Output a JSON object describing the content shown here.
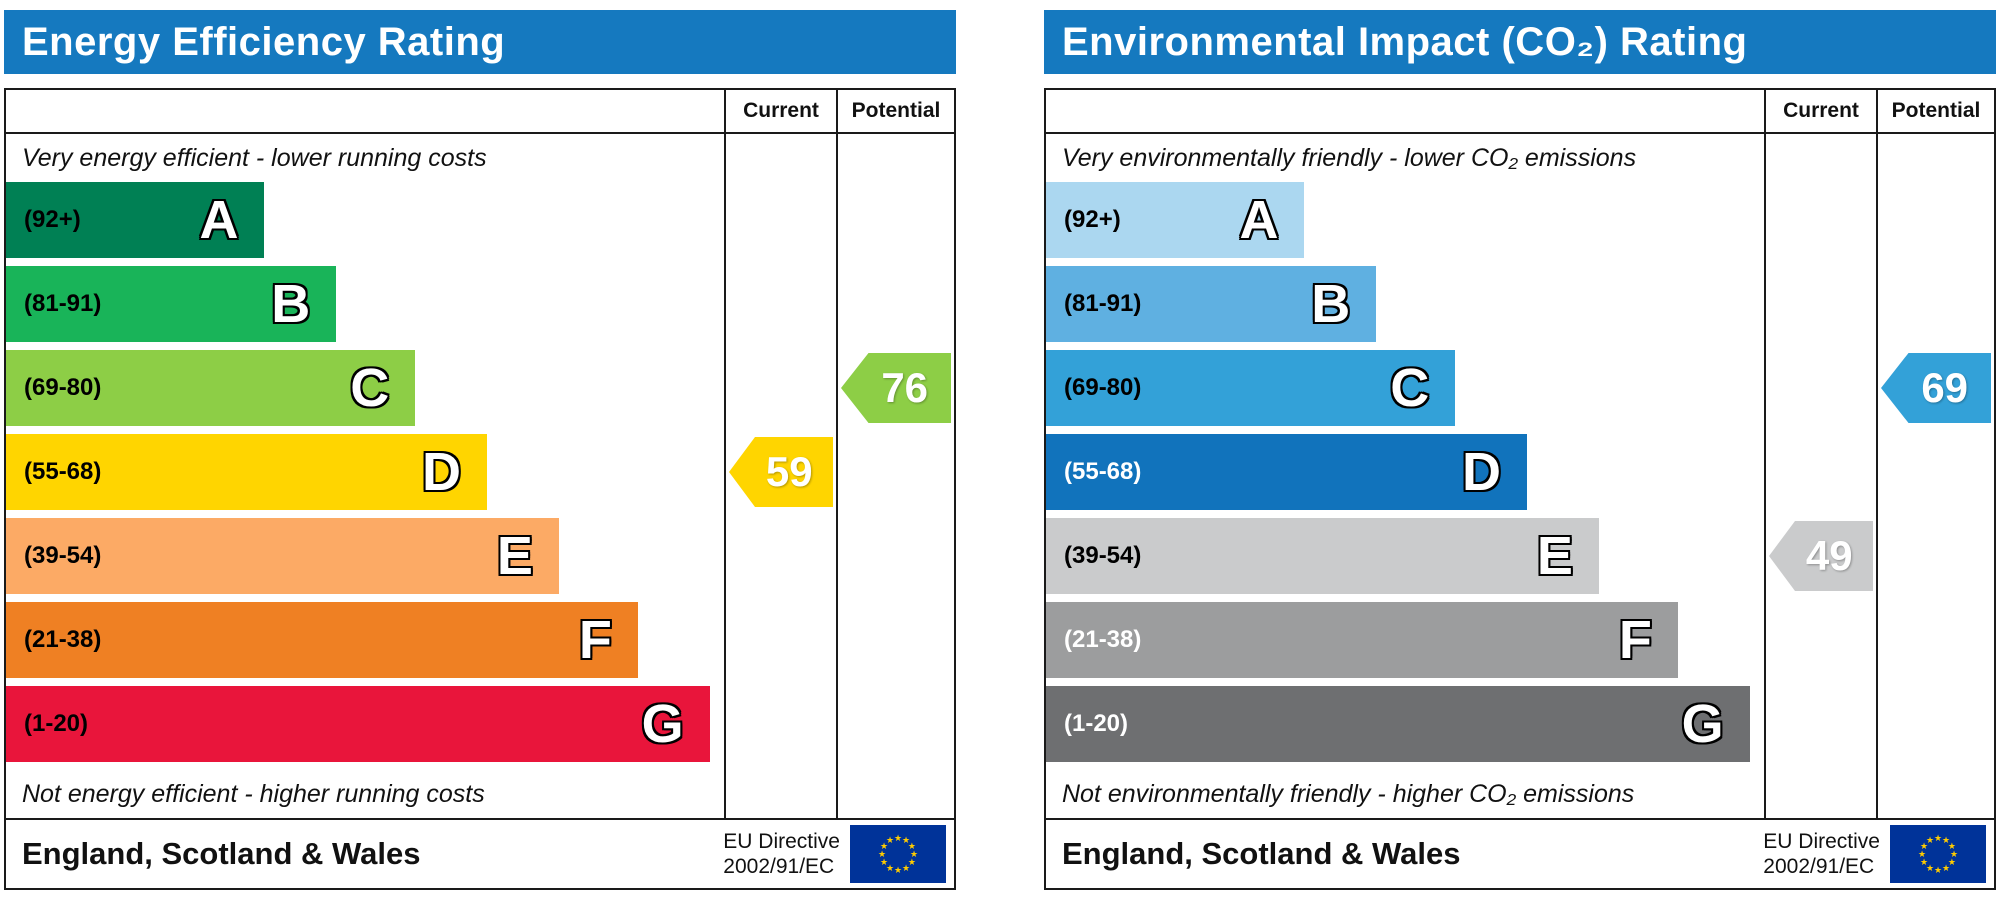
{
  "chart_data": [
    {
      "type": "bar",
      "title": "Energy Efficiency Rating",
      "columns": [
        "Current",
        "Potential"
      ],
      "top_note": "Very energy efficient - lower running costs",
      "bottom_note": "Not energy efficient - higher running costs",
      "categories": [
        "A (92+)",
        "B (81-91)",
        "C (69-80)",
        "D (55-68)",
        "E (39-54)",
        "F (21-38)",
        "G (1-20)"
      ],
      "band_colors": [
        "#008054",
        "#19b459",
        "#8dce46",
        "#ffd500",
        "#fcaa65",
        "#ef8023",
        "#e9153b"
      ],
      "current": {
        "value": 59,
        "band": "D"
      },
      "potential": {
        "value": 76,
        "band": "C"
      },
      "region": "England, Scotland & Wales",
      "directive": "EU Directive 2002/91/EC"
    },
    {
      "type": "bar",
      "title": "Environmental Impact (CO₂) Rating",
      "columns": [
        "Current",
        "Potential"
      ],
      "top_note": "Very environmentally friendly - lower CO₂ emissions",
      "bottom_note": "Not environmentally friendly - higher CO₂ emissions",
      "categories": [
        "A (92+)",
        "B (81-91)",
        "C (69-80)",
        "D (55-68)",
        "E (39-54)",
        "F (21-38)",
        "G (1-20)"
      ],
      "band_colors": [
        "#abd7f0",
        "#5fb0e1",
        "#33a1d8",
        "#1173bc",
        "#cacbcc",
        "#9c9d9e",
        "#6e6f71"
      ],
      "current": {
        "value": 49,
        "band": "E"
      },
      "potential": {
        "value": 69,
        "band": "C"
      },
      "region": "England, Scotland & Wales",
      "directive": "EU Directive 2002/91/EC"
    }
  ],
  "panels": [
    {
      "title": "Energy Efficiency Rating",
      "header_color": "#1579bf",
      "col_current": "Current",
      "col_potential": "Potential",
      "caption_top": "Very energy efficient - lower running costs",
      "caption_bottom": "Not energy efficient - higher running costs",
      "bands": [
        {
          "range": "(92+)",
          "letter": "A",
          "color": "#008054",
          "width": "36%",
          "text_color": "#000000"
        },
        {
          "range": "(81-91)",
          "letter": "B",
          "color": "#19b459",
          "width": "46%",
          "text_color": "#000000"
        },
        {
          "range": "(69-80)",
          "letter": "C",
          "color": "#8dce46",
          "width": "57%",
          "text_color": "#000000"
        },
        {
          "range": "(55-68)",
          "letter": "D",
          "color": "#ffd500",
          "width": "67%",
          "text_color": "#000000"
        },
        {
          "range": "(39-54)",
          "letter": "E",
          "color": "#fcaa65",
          "width": "77%",
          "text_color": "#000000"
        },
        {
          "range": "(21-38)",
          "letter": "F",
          "color": "#ef8023",
          "width": "88%",
          "text_color": "#000000"
        },
        {
          "range": "(1-20)",
          "letter": "G",
          "color": "#e9153b",
          "width": "98%",
          "text_color": "#000000"
        }
      ],
      "arrows": {
        "current": {
          "value": "59",
          "color": "#ffd500",
          "row": 3
        },
        "potential": {
          "value": "76",
          "color": "#8dce46",
          "row": 2
        }
      },
      "footer_region": "England, Scotland & Wales",
      "footer_directive_line1": "EU Directive",
      "footer_directive_line2": "2002/91/EC"
    },
    {
      "title": "Environmental Impact (CO₂) Rating",
      "header_color": "#1579bf",
      "col_current": "Current",
      "col_potential": "Potential",
      "caption_top": "Very environmentally friendly - lower CO₂ emissions",
      "caption_bottom": "Not environmentally friendly - higher CO₂ emissions",
      "bands": [
        {
          "range": "(92+)",
          "letter": "A",
          "color": "#abd7f0",
          "width": "36%",
          "text_color": "#000000"
        },
        {
          "range": "(81-91)",
          "letter": "B",
          "color": "#5fb0e1",
          "width": "46%",
          "text_color": "#000000"
        },
        {
          "range": "(69-80)",
          "letter": "C",
          "color": "#33a1d8",
          "width": "57%",
          "text_color": "#000000"
        },
        {
          "range": "(55-68)",
          "letter": "D",
          "color": "#1173bc",
          "width": "67%",
          "text_color": "#ffffff"
        },
        {
          "range": "(39-54)",
          "letter": "E",
          "color": "#cacbcc",
          "width": "77%",
          "text_color": "#000000"
        },
        {
          "range": "(21-38)",
          "letter": "F",
          "color": "#9c9d9e",
          "width": "88%",
          "text_color": "#ffffff"
        },
        {
          "range": "(1-20)",
          "letter": "G",
          "color": "#6e6f71",
          "width": "98%",
          "text_color": "#ffffff"
        }
      ],
      "arrows": {
        "current": {
          "value": "49",
          "color": "#cacbcc",
          "row": 4
        },
        "potential": {
          "value": "69",
          "color": "#33a1d8",
          "row": 2
        }
      },
      "footer_region": "England, Scotland & Wales",
      "footer_directive_line1": "EU Directive",
      "footer_directive_line2": "2002/91/EC"
    }
  ]
}
